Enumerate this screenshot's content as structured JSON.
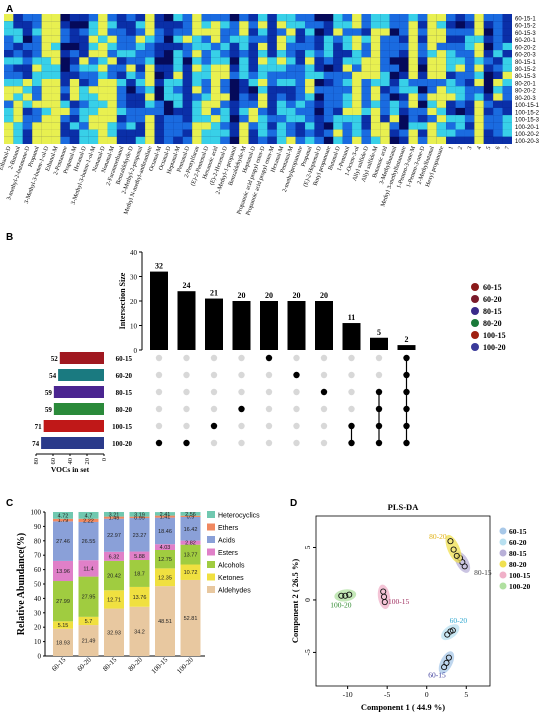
{
  "panels": {
    "a": "A",
    "b": "B",
    "c": "C",
    "d": "D"
  },
  "chart_data": [
    {
      "type": "heatmap",
      "panel": "A",
      "rows": [
        "60-15-1",
        "60-15-2",
        "60-15-3",
        "60-20-1",
        "60-20-2",
        "60-20-3",
        "80-15-1",
        "80-15-2",
        "80-15-3",
        "80-20-1",
        "80-20-2",
        "80-20-3",
        "100-15-1",
        "100-15-2",
        "100-15-3",
        "100-20-1",
        "100-20-2",
        "100-20-3"
      ],
      "columns": [
        "Ethanol-D",
        "2-Butanol",
        "3-methyl-2-butanone-D",
        "Propanol",
        "3-Methyl-3-buten-1-ol-D",
        "Ethanol-M",
        "2-Pentanone",
        "Propanal-M",
        "Hexanal-D",
        "3-Methyl-3-buten-1-ol-M",
        "Nonanal-D",
        "Nonanal-M",
        "2-Furanmethanol",
        "Benzaldehyde-D",
        "2-Methyl-2-propenal",
        "Methyl N-methyl-anthranilate",
        "Octanal-M",
        "Octanal-D",
        "Heptanal-M",
        "Pentanal-D",
        "2-Pentylfuran",
        "(E)-2-Pentenal-D",
        "Hexanoic acid",
        "(E)-2-Hexenal-D",
        "2-Methyl-1-propanol",
        "Benzaldehyde-M",
        "Heptanal-D",
        "Propanoic acid propyl ester-D",
        "Propanoic acid propyl ester-M",
        "Hexanal-M",
        "Pentanal-M",
        "2-methylpropanoate",
        "Propanal",
        "(E)-2-Heptenal-D",
        "Butyl propanoate",
        "Butanal-D",
        "1-Pentanol",
        "1-Octen-3-ol",
        "Allyl sulfide-D",
        "Allyl sulfide-M",
        "Butanoic acid",
        "3-Methylbutanal",
        "Methyl 3-methylbutanoate",
        "1-Penten-3-one-M",
        "1-Penten-3-one-D",
        "2-Methylbutanal",
        "Hexyl propanoate",
        "1",
        "2",
        "3",
        "4",
        "5",
        "6",
        "7"
      ],
      "colorscale": [
        "#06084a",
        "#0a2fa8",
        "#1a6be0",
        "#38d0e8",
        "#e8f050"
      ]
    },
    {
      "type": "bar",
      "panel": "B",
      "ylabel": "Intersection Size",
      "ylim": [
        0,
        40
      ],
      "yticks": [
        0,
        10,
        20,
        30,
        40
      ],
      "values": [
        32,
        24,
        21,
        20,
        20,
        20,
        20,
        11,
        5,
        2
      ],
      "value_labels": [
        "32",
        "24",
        "21",
        "20",
        "20",
        "20",
        "20",
        "11",
        "5",
        "2"
      ],
      "sets": [
        "60-15",
        "60-20",
        "80-15",
        "80-20",
        "100-15",
        "100-20"
      ],
      "set_sizes": [
        52,
        54,
        59,
        59,
        71,
        74
      ],
      "set_size_labels": [
        "52",
        "54",
        "59",
        "59",
        "71",
        "74"
      ],
      "set_colors": [
        "#a01820",
        "#1a7a80",
        "#4a2590",
        "#2a8a3a",
        "#c01818",
        "#2a3a8a"
      ],
      "set_size_axis_label": "VOCs in set",
      "set_size_ticks": [
        "80",
        "60",
        "40",
        "20",
        "0"
      ],
      "membership": [
        [
          5
        ],
        [
          5
        ],
        [
          4
        ],
        [
          3
        ],
        [
          0
        ],
        [
          1
        ],
        [
          2
        ],
        [
          4,
          5
        ],
        [
          2,
          3,
          4,
          5
        ],
        [
          0,
          1,
          2,
          3,
          4,
          5
        ]
      ],
      "legend": [
        "60-15",
        "60-20",
        "80-15",
        "80-20",
        "100-15",
        "100-20"
      ],
      "legend_colors": [
        "#8b1a1a",
        "#7a1a2a",
        "#3a2a8a",
        "#1a7a3a",
        "#a02010",
        "#3a3a9a"
      ]
    },
    {
      "type": "bar",
      "stacked": true,
      "panel": "C",
      "ylabel": "Relative Abundance(%)",
      "ylim": [
        0,
        100
      ],
      "yticks": [
        "0",
        "10",
        "20",
        "30",
        "40",
        "50",
        "60",
        "70",
        "80",
        "90",
        "100"
      ],
      "categories": [
        "60-15",
        "60-20",
        "80-15",
        "80-20",
        "100-15",
        "100-20"
      ],
      "series": [
        {
          "name": "Aldehydes",
          "color": "#e8c8a0",
          "values": [
            18.93,
            21.49,
            32.93,
            34.2,
            48.51,
            52.81
          ],
          "labels": [
            "18.93",
            "21.49",
            "32.93",
            "34.2",
            "48.51",
            "52.81"
          ]
        },
        {
          "name": "Ketones",
          "color": "#f0e040",
          "values": [
            5.15,
            5.7,
            12.71,
            13.76,
            12.35,
            10.72
          ],
          "labels": [
            "5.15",
            "5.7",
            "12.71",
            "13.76",
            "12.35",
            "10.72"
          ]
        },
        {
          "name": "Alcohols",
          "color": "#a0cc40",
          "values": [
            27.99,
            27.95,
            20.42,
            18.7,
            12.75,
            13.77
          ],
          "labels": [
            "27.99",
            "27.95",
            "20.42",
            "18.7",
            "12.75",
            "13.77"
          ]
        },
        {
          "name": "Esters",
          "color": "#e080c8",
          "values": [
            13.96,
            11.4,
            6.32,
            5.88,
            4.03,
            2.82
          ],
          "labels": [
            "13.96",
            "11.4",
            "6.32",
            "5.88",
            "4.03",
            "2.82"
          ]
        },
        {
          "name": "Acids",
          "color": "#8aa0d8",
          "values": [
            27.46,
            26.55,
            22.97,
            23.27,
            18.46,
            16.42
          ],
          "labels": [
            "27.46",
            "26.55",
            "22.97",
            "23.27",
            "18.46",
            "16.42"
          ]
        },
        {
          "name": "Ethers",
          "color": "#f08860",
          "values": [
            1.79,
            2.22,
            1.45,
            0.99,
            1.41,
            0.9
          ],
          "labels": [
            "1.79",
            "2.22",
            "1.45",
            "0.99",
            "1.41",
            "0.9"
          ]
        },
        {
          "name": "Heterocyclics",
          "color": "#70c8b0",
          "values": [
            4.72,
            4.7,
            3.21,
            3.19,
            2.41,
            2.56
          ],
          "labels": [
            "4.72",
            "4.7",
            "3.21",
            "3.19",
            "2.41",
            "2.56"
          ]
        }
      ],
      "legend_order": [
        "Heterocyclics",
        "Ethers",
        "Acids",
        "Esters",
        "Alcohols",
        "Ketones",
        "Aldehydes"
      ]
    },
    {
      "type": "scatter",
      "panel": "D",
      "title": "PLS-DA",
      "xlabel": "Component 1 ( 44.9 %)",
      "ylabel": "Component 2 ( 26.5 %)",
      "xlim": [
        -14,
        8
      ],
      "ylim": [
        -8.2,
        8
      ],
      "xticks": [
        -10,
        -5,
        0,
        5
      ],
      "xtick_labels": [
        "-10",
        "-5",
        "0",
        "5"
      ],
      "yticks": [
        -5,
        0,
        5
      ],
      "ytick_labels": [
        "-5",
        "0",
        "5"
      ],
      "series": [
        {
          "name": "60-15",
          "color": "#a8c8e8",
          "label_color": "#3a3a9a",
          "points": [
            [
              2.2,
              -6.4
            ],
            [
              2.5,
              -6.0
            ],
            [
              2.8,
              -5.5
            ]
          ],
          "label": "60-15",
          "label_at": [
            0.2,
            -7.4
          ]
        },
        {
          "name": "60-20",
          "color": "#b8e0f0",
          "label_color": "#30a8d0",
          "points": [
            [
              2.6,
              -3.3
            ],
            [
              3.0,
              -3.0
            ],
            [
              3.3,
              -2.9
            ]
          ],
          "label": "60-20",
          "label_at": [
            2.9,
            -2.2
          ]
        },
        {
          "name": "80-15",
          "color": "#b8b0d8",
          "label_color": "#404040",
          "points": [
            [
              4.2,
              4.0
            ],
            [
              4.5,
              3.6
            ],
            [
              4.8,
              3.2
            ]
          ],
          "label": "80-15",
          "label_at": [
            6.0,
            2.4
          ]
        },
        {
          "name": "80-20",
          "color": "#f0e050",
          "label_color": "#e0b010",
          "points": [
            [
              3.0,
              5.6
            ],
            [
              3.4,
              4.8
            ],
            [
              3.8,
              4.2
            ]
          ],
          "label": "80-20",
          "label_at": [
            0.3,
            5.8
          ]
        },
        {
          "name": "100-15",
          "color": "#f0b0c8",
          "label_color": "#a03060",
          "points": [
            [
              -5.5,
              0.8
            ],
            [
              -5.4,
              0.3
            ],
            [
              -5.3,
              -0.2
            ]
          ],
          "label": "100-15",
          "label_at": [
            -4.9,
            -0.4
          ]
        },
        {
          "name": "100-20",
          "color": "#b0e0a0",
          "label_color": "#308a30",
          "points": [
            [
              -10.8,
              0.4
            ],
            [
              -10.3,
              0.4
            ],
            [
              -9.8,
              0.5
            ]
          ],
          "label": "100-20",
          "label_at": [
            -12.2,
            -0.7
          ]
        }
      ],
      "legend": [
        "60-15",
        "60-20",
        "80-15",
        "80-20",
        "100-15",
        "100-20"
      ],
      "legend_colors": [
        "#a8c8e8",
        "#b8e0f0",
        "#b8b0d8",
        "#f0e050",
        "#f0b0c8",
        "#b0e0a0"
      ]
    }
  ]
}
